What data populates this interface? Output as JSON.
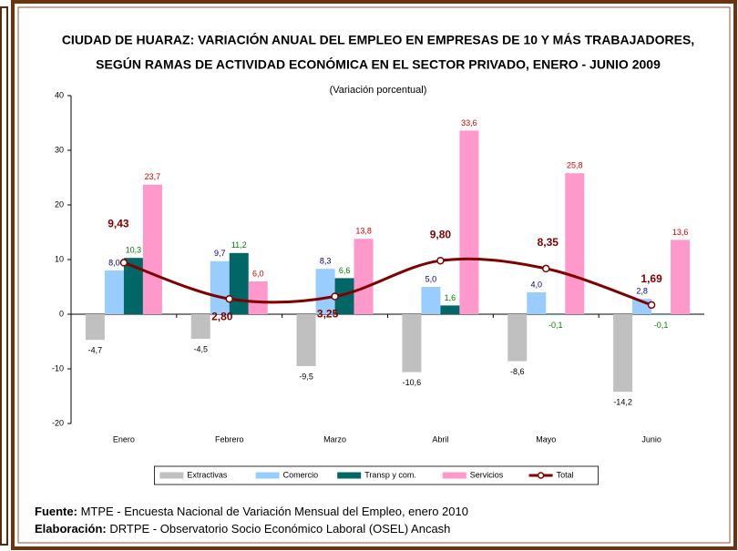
{
  "chart_data": {
    "type": "bar",
    "title": [
      "CIUDAD DE HUARAZ: VARIACIÓN ANUAL DEL EMPLEO EN EMPRESAS DE 10 Y MÁS TRABAJADORES,",
      "SEGÚN RAMAS DE ACTIVIDAD ECONÓMICA EN EL SECTOR PRIVADO, ENERO - JUNIO 2009"
    ],
    "subtitle": "(Variación porcentual)",
    "categories": [
      "Enero",
      "Febrero",
      "Marzo",
      "Abril",
      "Mayo",
      "Junio"
    ],
    "series": [
      {
        "name": "Extractivas",
        "color": "#c0c0c0",
        "label_color": "#000000",
        "values": [
          -4.7,
          -4.5,
          -9.5,
          -10.6,
          -8.6,
          -14.2
        ],
        "value_labels": [
          "-4,7",
          "-4,5",
          "-9,5",
          "-10,6",
          "-8,6",
          "-14,2"
        ]
      },
      {
        "name": "Comercio",
        "color": "#99ccff",
        "label_color": "#000080",
        "values": [
          8.0,
          9.7,
          8.3,
          5.0,
          4.0,
          2.8
        ],
        "value_labels": [
          "8,0",
          "9,7",
          "8,3",
          "5,0",
          "4,0",
          "2,8"
        ]
      },
      {
        "name": "Transp y com.",
        "color": "#006666",
        "label_color": "#008000",
        "values": [
          10.3,
          11.2,
          6.6,
          1.6,
          -0.1,
          -0.1
        ],
        "value_labels": [
          "10,3",
          "11,2",
          "6,6",
          "1,6",
          "-0,1",
          "-0,1"
        ]
      },
      {
        "name": "Servicios",
        "color": "#ff99cc",
        "label_color": "#cc0000",
        "values": [
          23.7,
          6.0,
          13.8,
          33.6,
          25.8,
          13.6
        ],
        "value_labels": [
          "23,7",
          "6,0",
          "13,8",
          "33,6",
          "25,8",
          "13,6"
        ]
      },
      {
        "name": "Total",
        "type": "line",
        "color": "#800000",
        "label_color": "#800000",
        "values": [
          9.43,
          2.8,
          3.25,
          9.8,
          8.35,
          1.69
        ],
        "value_labels": [
          "9,43",
          "2,80",
          "3,25",
          "9,80",
          "8,35",
          "1,69"
        ]
      }
    ],
    "ylim": [
      -20,
      40
    ],
    "yticks": [
      -20,
      -10,
      0,
      10,
      20,
      30,
      40
    ],
    "legend": "bottom"
  },
  "footer": [
    {
      "label": "Fuente:",
      "text": "MTPE - Encuesta Nacional de Variación Mensual del Empleo, enero 2010"
    },
    {
      "label": "Elaboración:",
      "text": "DRTPE - Observatorio Socio Económico Laboral (OSEL) Ancash"
    }
  ]
}
